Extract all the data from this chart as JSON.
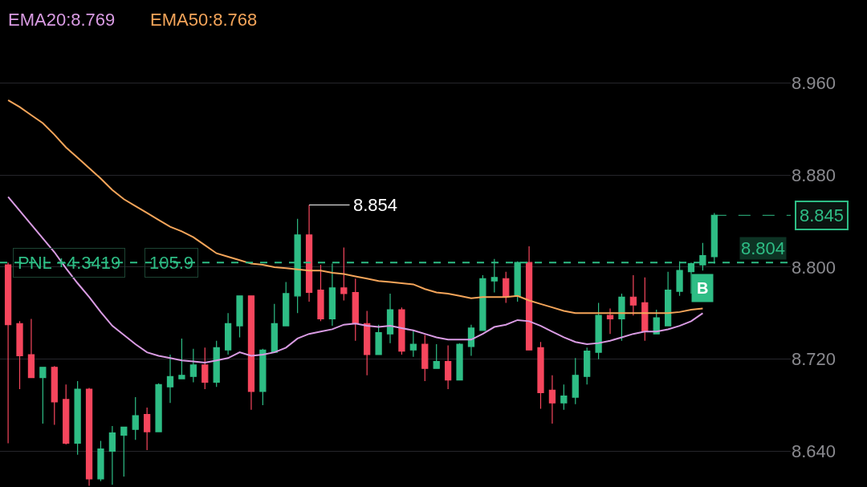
{
  "chart_data": {
    "type": "candlestick",
    "categories": [
      null,
      null,
      null,
      null,
      null,
      null,
      null,
      null,
      null,
      null,
      null,
      null,
      null,
      null,
      null,
      null,
      null,
      null,
      null,
      null,
      null,
      null,
      null,
      null,
      null,
      null,
      null,
      null,
      null,
      null,
      null,
      null,
      null,
      null,
      null,
      null,
      null,
      null,
      null,
      null,
      null,
      null,
      null,
      null,
      null,
      null,
      null,
      null,
      null,
      null,
      null,
      null,
      null,
      null,
      null,
      null,
      null,
      null,
      null,
      null,
      null,
      null
    ],
    "ohlc": [
      [
        8.802,
        8.804,
        8.647,
        8.75
      ],
      [
        8.751,
        8.753,
        8.694,
        8.723
      ],
      [
        8.724,
        8.755,
        8.704,
        8.704
      ],
      [
        8.704,
        8.713,
        8.664,
        8.713
      ],
      [
        8.713,
        8.714,
        8.663,
        8.683
      ],
      [
        8.685,
        8.698,
        8.646,
        8.647
      ],
      [
        8.647,
        8.701,
        8.637,
        8.694
      ],
      [
        8.694,
        8.695,
        8.61,
        8.616
      ],
      [
        8.616,
        8.649,
        8.614,
        8.642
      ],
      [
        8.64,
        8.662,
        8.611,
        8.656
      ],
      [
        8.654,
        8.661,
        8.618,
        8.661
      ],
      [
        8.659,
        8.687,
        8.65,
        8.671
      ],
      [
        8.672,
        8.678,
        8.641,
        8.657
      ],
      [
        8.657,
        8.699,
        8.657,
        8.698
      ],
      [
        8.696,
        8.724,
        8.682,
        8.705
      ],
      [
        8.703,
        8.738,
        8.703,
        8.706
      ],
      [
        8.705,
        8.729,
        8.7,
        8.715
      ],
      [
        8.715,
        8.73,
        8.694,
        8.7
      ],
      [
        8.7,
        8.736,
        8.696,
        8.73
      ],
      [
        8.728,
        8.76,
        8.724,
        8.751
      ],
      [
        8.749,
        8.775,
        8.739,
        8.775
      ],
      [
        8.775,
        8.775,
        8.676,
        8.692
      ],
      [
        8.692,
        8.729,
        8.68,
        8.728
      ],
      [
        8.726,
        8.768,
        8.726,
        8.751
      ],
      [
        8.749,
        8.787,
        8.749,
        8.777
      ],
      [
        8.775,
        8.842,
        8.76,
        8.828
      ],
      [
        8.828,
        8.854,
        8.77,
        8.778
      ],
      [
        8.78,
        8.802,
        8.753,
        8.755
      ],
      [
        8.755,
        8.803,
        8.749,
        8.782
      ],
      [
        8.782,
        8.817,
        8.771,
        8.777
      ],
      [
        8.778,
        8.79,
        8.736,
        8.751
      ],
      [
        8.751,
        8.762,
        8.706,
        8.724
      ],
      [
        8.724,
        8.75,
        8.724,
        8.743
      ],
      [
        8.742,
        8.777,
        8.734,
        8.763
      ],
      [
        8.763,
        8.765,
        8.724,
        8.727
      ],
      [
        8.728,
        8.745,
        8.722,
        8.733
      ],
      [
        8.733,
        8.741,
        8.701,
        8.712
      ],
      [
        8.712,
        8.733,
        8.712,
        8.718
      ],
      [
        8.718,
        8.732,
        8.694,
        8.702
      ],
      [
        8.702,
        8.734,
        8.702,
        8.733
      ],
      [
        8.731,
        8.75,
        8.723,
        8.747
      ],
      [
        8.745,
        8.793,
        8.745,
        8.79
      ],
      [
        8.788,
        8.807,
        8.778,
        8.791
      ],
      [
        8.79,
        8.796,
        8.769,
        8.774
      ],
      [
        8.775,
        8.805,
        8.77,
        8.804
      ],
      [
        8.804,
        8.818,
        8.728,
        8.728
      ],
      [
        8.73,
        8.735,
        8.677,
        8.691
      ],
      [
        8.693,
        8.706,
        8.664,
        8.682
      ],
      [
        8.682,
        8.698,
        8.676,
        8.688
      ],
      [
        8.687,
        8.721,
        8.681,
        8.706
      ],
      [
        8.705,
        8.73,
        8.698,
        8.727
      ],
      [
        8.726,
        8.769,
        8.72,
        8.758
      ],
      [
        8.758,
        8.764,
        8.742,
        8.755
      ],
      [
        8.755,
        8.777,
        8.736,
        8.774
      ],
      [
        8.774,
        8.793,
        8.758,
        8.767
      ],
      [
        8.769,
        8.791,
        8.736,
        8.744
      ],
      [
        8.742,
        8.763,
        8.742,
        8.756
      ],
      [
        8.749,
        8.796,
        8.749,
        8.78
      ],
      [
        8.779,
        8.805,
        8.775,
        8.797
      ],
      [
        8.796,
        8.804,
        8.777,
        8.803
      ],
      [
        8.802,
        8.821,
        8.797,
        8.81
      ],
      [
        8.809,
        8.847,
        8.803,
        8.845
      ]
    ],
    "series": [
      {
        "name": "EMA20:8.769",
        "type": "line",
        "color": "#d99be3",
        "values": [
          8.861,
          8.849,
          8.837,
          8.825,
          8.813,
          8.799,
          8.786,
          8.774,
          8.761,
          8.749,
          8.741,
          8.733,
          8.726,
          8.723,
          8.721,
          8.719,
          8.718,
          8.717,
          8.719,
          8.721,
          8.726,
          8.723,
          8.724,
          8.726,
          8.73,
          8.738,
          8.742,
          8.744,
          8.746,
          8.75,
          8.751,
          8.749,
          8.748,
          8.749,
          8.747,
          8.745,
          8.742,
          8.739,
          8.737,
          8.737,
          8.737,
          8.742,
          8.748,
          8.75,
          8.754,
          8.753,
          8.749,
          8.744,
          8.739,
          8.735,
          8.733,
          8.734,
          8.736,
          8.739,
          8.742,
          8.744,
          8.744,
          8.746,
          8.749,
          8.753,
          8.76,
          null
        ]
      },
      {
        "name": "EMA50:8.768",
        "type": "line",
        "color": "#f5a55a",
        "values": [
          8.945,
          8.939,
          8.932,
          8.925,
          8.915,
          8.904,
          8.895,
          8.886,
          8.877,
          8.867,
          8.859,
          8.853,
          8.847,
          8.841,
          8.835,
          8.831,
          8.826,
          8.819,
          8.812,
          8.809,
          8.806,
          8.803,
          8.802,
          8.8,
          8.799,
          8.798,
          8.797,
          8.797,
          8.795,
          8.794,
          8.792,
          8.79,
          8.788,
          8.787,
          8.786,
          8.785,
          8.781,
          8.778,
          8.777,
          8.775,
          8.773,
          8.774,
          8.774,
          8.774,
          8.775,
          8.771,
          8.768,
          8.765,
          8.762,
          8.76,
          8.76,
          8.76,
          8.76,
          8.76,
          8.76,
          8.76,
          8.76,
          8.76,
          8.761,
          8.763,
          8.764,
          null
        ]
      }
    ],
    "ylim": [
      8.609,
      9.032
    ],
    "yticks": [
      {
        "value": 8.64,
        "label": "8.640"
      },
      {
        "value": 8.72,
        "label": "8.720"
      },
      {
        "value": 8.8,
        "label": "8.800"
      },
      {
        "value": 8.88,
        "label": "8.880"
      },
      {
        "value": 8.96,
        "label": "8.960"
      }
    ],
    "grid": "y",
    "tick_labels": "y",
    "ref_lines": [
      {
        "axis": "y",
        "value": 8.804,
        "label": "8.804",
        "color": "#2ebd85",
        "line_style": "dashed"
      },
      {
        "axis": "y",
        "value": 8.845,
        "label": "8.845",
        "color": "#2ebd85",
        "line_style": "dashed"
      }
    ],
    "annotations": [
      "PNL +4.3419",
      "105.9",
      "B",
      "8.854"
    ]
  }
}
